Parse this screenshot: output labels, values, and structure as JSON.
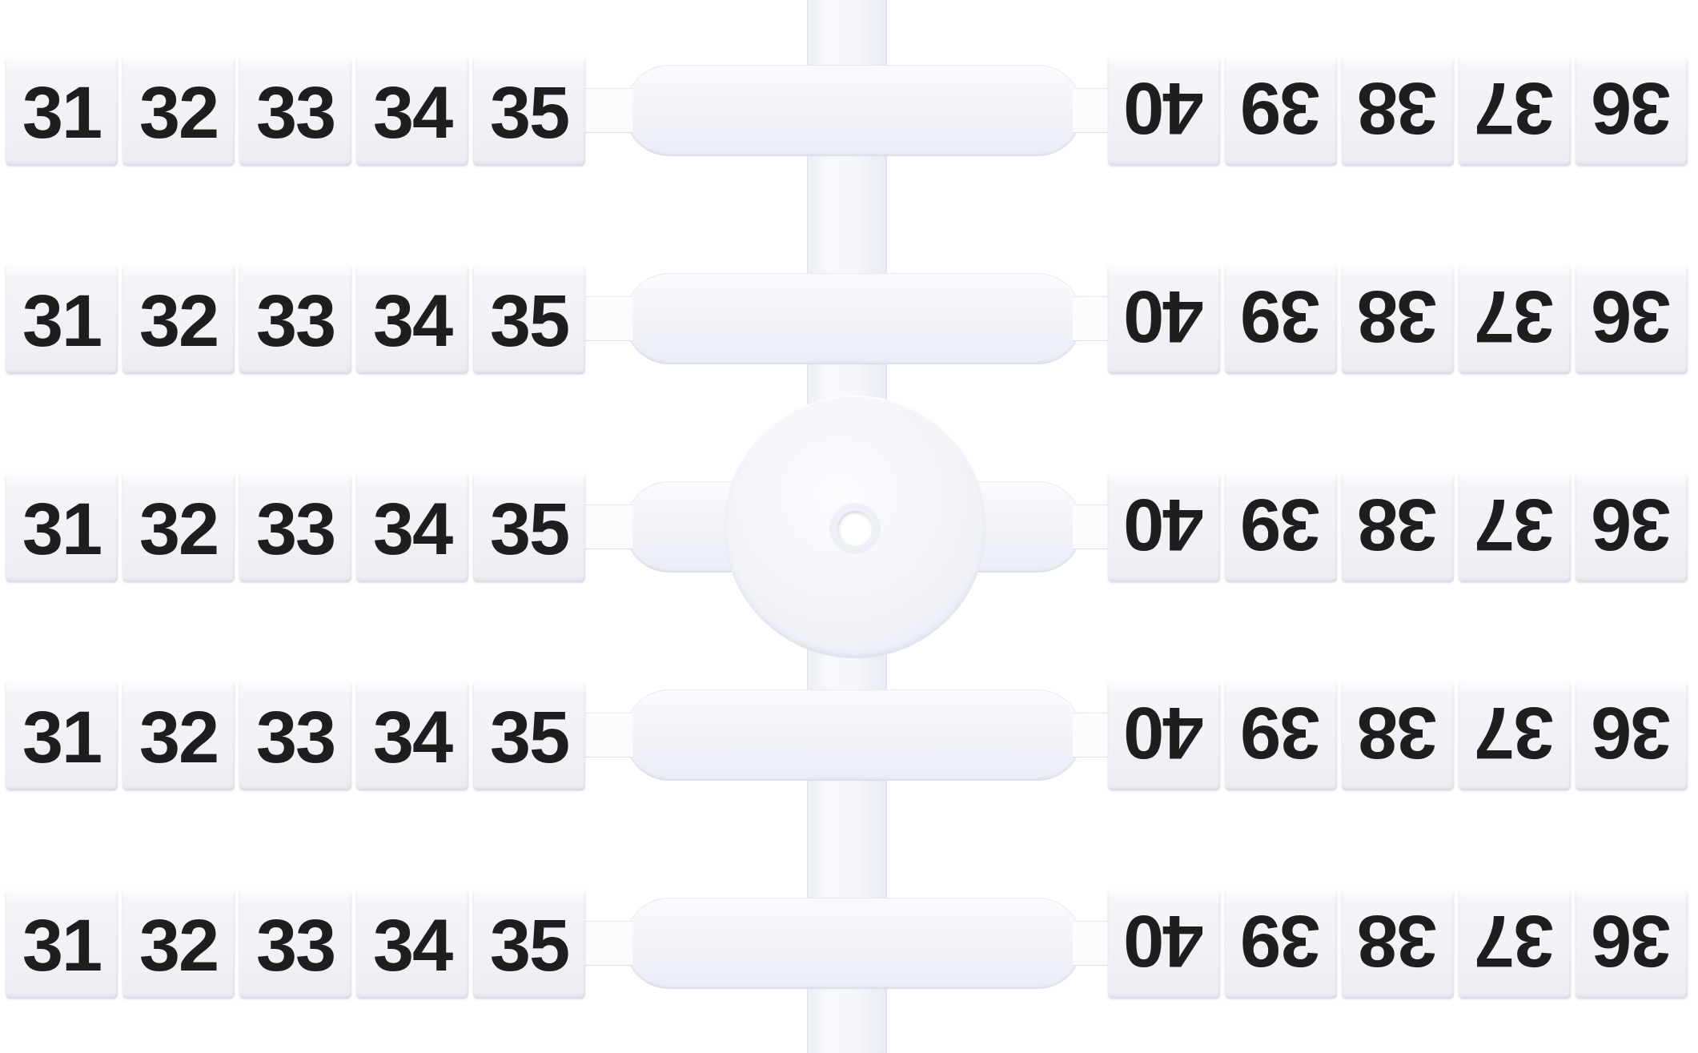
{
  "scene": {
    "description": "White plastic sprue sheet of snap-off terminal block marker tags numbered 31 to 40, five identical rows joined by a molded runner with a central disc and pilot hole",
    "row_count": 5,
    "left_strip_labels": [
      "31",
      "32",
      "33",
      "34",
      "35"
    ],
    "right_strip_labels_as_seen": [
      "40",
      "39",
      "38",
      "37",
      "36"
    ],
    "right_strip_orientation": "rotated-180",
    "colors": {
      "background": "#ffffff",
      "plastic_highlight": "#fbfcfe",
      "plastic_mid": "#f2f3f9",
      "plastic_shadow": "#e7e9f3",
      "edge_line": "#dfe1ec",
      "digit": "#1e1e1e"
    }
  }
}
